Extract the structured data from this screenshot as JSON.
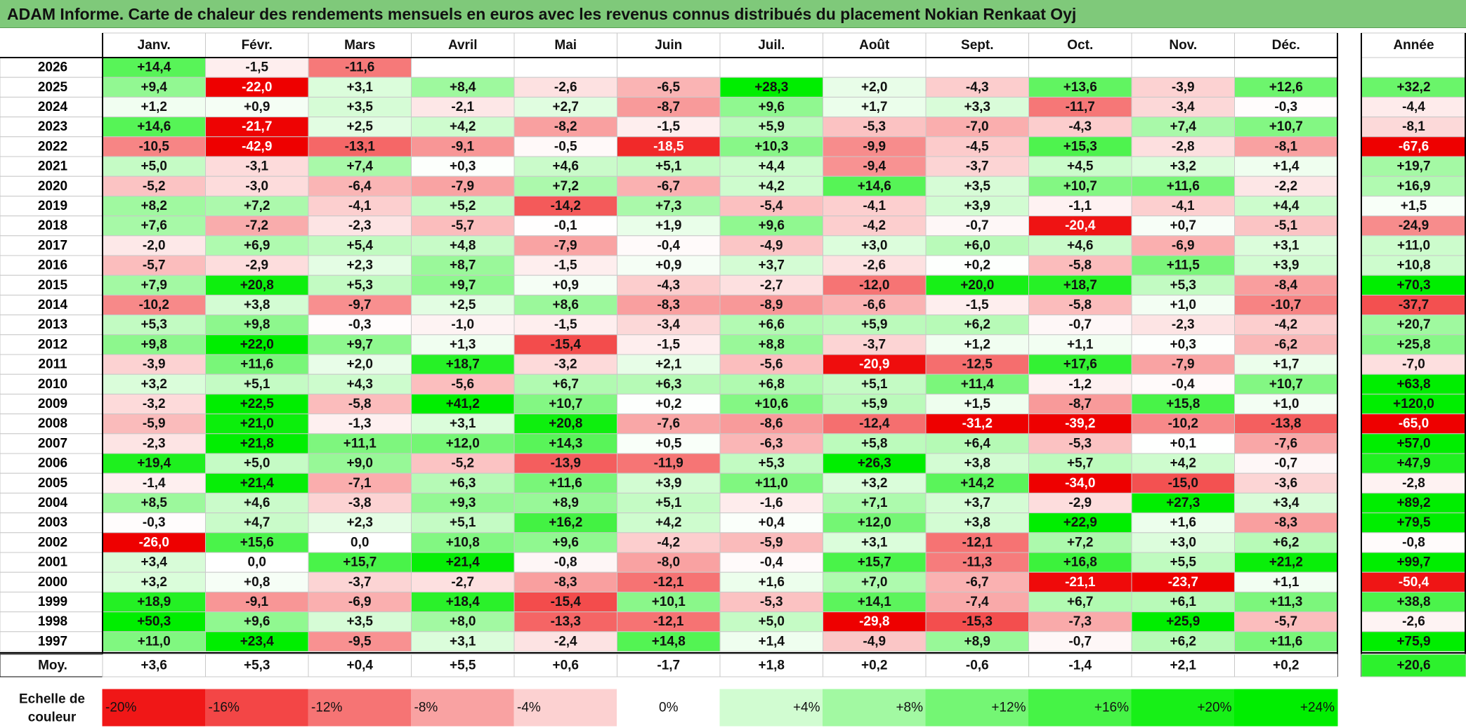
{
  "title": "ADAM Informe. Carte de chaleur des rendements mensuels en euros avec les revenus connus distribués du placement Nokian Renkaat Oyj",
  "colors": {
    "title_bg": "#7fc97a",
    "positive_max": "#00ee00",
    "negative_max": "#ee0000",
    "neutral": "#ffffff"
  },
  "chart_data": {
    "type": "heatmap",
    "title": "ADAM Informe. Carte de chaleur des rendements mensuels en euros avec les revenus connus distribués du placement Nokian Renkaat Oyj",
    "months": [
      "Janv.",
      "Févr.",
      "Mars",
      "Avril",
      "Mai",
      "Juin",
      "Juil.",
      "Août",
      "Sept.",
      "Oct.",
      "Nov.",
      "Déc."
    ],
    "year_label": "Année",
    "average_label": "Moy.",
    "rows": [
      {
        "year": "2026",
        "values": [
          "+14,4",
          "-1,5",
          "-11,6",
          "",
          "",
          "",
          "",
          "",
          "",
          "",
          "",
          ""
        ],
        "annual": ""
      },
      {
        "year": "2025",
        "values": [
          "+9,4",
          "-22,0",
          "+3,1",
          "+8,4",
          "-2,6",
          "-6,5",
          "+28,3",
          "+2,0",
          "-4,3",
          "+13,6",
          "-3,9",
          "+12,6"
        ],
        "annual": "+32,2"
      },
      {
        "year": "2024",
        "values": [
          "+1,2",
          "+0,9",
          "+3,5",
          "-2,1",
          "+2,7",
          "-8,7",
          "+9,6",
          "+1,7",
          "+3,3",
          "-11,7",
          "-3,4",
          "-0,3"
        ],
        "annual": "-4,4"
      },
      {
        "year": "2023",
        "values": [
          "+14,6",
          "-21,7",
          "+2,5",
          "+4,2",
          "-8,2",
          "-1,5",
          "+5,9",
          "-5,3",
          "-7,0",
          "-4,3",
          "+7,4",
          "+10,7"
        ],
        "annual": "-8,1"
      },
      {
        "year": "2022",
        "values": [
          "-10,5",
          "-42,9",
          "-13,1",
          "-9,1",
          "-0,5",
          "-18,5",
          "+10,3",
          "-9,9",
          "-4,5",
          "+15,3",
          "-2,8",
          "-8,1"
        ],
        "annual": "-67,6"
      },
      {
        "year": "2021",
        "values": [
          "+5,0",
          "-3,1",
          "+7,4",
          "+0,3",
          "+4,6",
          "+5,1",
          "+4,4",
          "-9,4",
          "-3,7",
          "+4,5",
          "+3,2",
          "+1,4"
        ],
        "annual": "+19,7"
      },
      {
        "year": "2020",
        "values": [
          "-5,2",
          "-3,0",
          "-6,4",
          "-7,9",
          "+7,2",
          "-6,7",
          "+4,2",
          "+14,6",
          "+3,5",
          "+10,7",
          "+11,6",
          "-2,2"
        ],
        "annual": "+16,9"
      },
      {
        "year": "2019",
        "values": [
          "+8,2",
          "+7,2",
          "-4,1",
          "+5,2",
          "-14,2",
          "+7,3",
          "-5,4",
          "-4,1",
          "+3,9",
          "-1,1",
          "-4,1",
          "+4,4"
        ],
        "annual": "+1,5"
      },
      {
        "year": "2018",
        "values": [
          "+7,6",
          "-7,2",
          "-2,3",
          "-5,7",
          "-0,1",
          "+1,9",
          "+9,6",
          "-4,2",
          "-0,7",
          "-20,4",
          "+0,7",
          "-5,1"
        ],
        "annual": "-24,9"
      },
      {
        "year": "2017",
        "values": [
          "-2,0",
          "+6,9",
          "+5,4",
          "+4,8",
          "-7,9",
          "-0,4",
          "-4,9",
          "+3,0",
          "+6,0",
          "+4,6",
          "-6,9",
          "+3,1"
        ],
        "annual": "+11,0"
      },
      {
        "year": "2016",
        "values": [
          "-5,7",
          "-2,9",
          "+2,3",
          "+8,7",
          "-1,5",
          "+0,9",
          "+3,7",
          "-2,6",
          "+0,2",
          "-5,8",
          "+11,5",
          "+3,9"
        ],
        "annual": "+10,8"
      },
      {
        "year": "2015",
        "values": [
          "+7,9",
          "+20,8",
          "+5,3",
          "+9,7",
          "+0,9",
          "-4,3",
          "-2,7",
          "-12,0",
          "+20,0",
          "+18,7",
          "+5,3",
          "-8,4"
        ],
        "annual": "+70,3"
      },
      {
        "year": "2014",
        "values": [
          "-10,2",
          "+3,8",
          "-9,7",
          "+2,5",
          "+8,6",
          "-8,3",
          "-8,9",
          "-6,6",
          "-1,5",
          "-5,8",
          "+1,0",
          "-10,7"
        ],
        "annual": "-37,7"
      },
      {
        "year": "2013",
        "values": [
          "+5,3",
          "+9,8",
          "-0,3",
          "-1,0",
          "-1,5",
          "-3,4",
          "+6,6",
          "+5,9",
          "+6,2",
          "-0,7",
          "-2,3",
          "-4,2"
        ],
        "annual": "+20,7"
      },
      {
        "year": "2012",
        "values": [
          "+9,8",
          "+22,0",
          "+9,7",
          "+1,3",
          "-15,4",
          "-1,5",
          "+8,8",
          "-3,7",
          "+1,2",
          "+1,1",
          "+0,3",
          "-6,2"
        ],
        "annual": "+25,8"
      },
      {
        "year": "2011",
        "values": [
          "-3,9",
          "+11,6",
          "+2,0",
          "+18,7",
          "-3,2",
          "+2,1",
          "-5,6",
          "-20,9",
          "-12,5",
          "+17,6",
          "-7,9",
          "+1,7"
        ],
        "annual": "-7,0"
      },
      {
        "year": "2010",
        "values": [
          "+3,2",
          "+5,1",
          "+4,3",
          "-5,6",
          "+6,7",
          "+6,3",
          "+6,8",
          "+5,1",
          "+11,4",
          "-1,2",
          "-0,4",
          "+10,7"
        ],
        "annual": "+63,8"
      },
      {
        "year": "2009",
        "values": [
          "-3,2",
          "+22,5",
          "-5,8",
          "+41,2",
          "+10,7",
          "+0,2",
          "+10,6",
          "+5,9",
          "+1,5",
          "-8,7",
          "+15,8",
          "+1,0"
        ],
        "annual": "+120,0"
      },
      {
        "year": "2008",
        "values": [
          "-5,9",
          "+21,0",
          "-1,3",
          "+3,1",
          "+20,8",
          "-7,6",
          "-8,6",
          "-12,4",
          "-31,2",
          "-39,2",
          "-10,2",
          "-13,8"
        ],
        "annual": "-65,0"
      },
      {
        "year": "2007",
        "values": [
          "-2,3",
          "+21,8",
          "+11,1",
          "+12,0",
          "+14,3",
          "+0,5",
          "-6,3",
          "+5,8",
          "+6,4",
          "-5,3",
          "+0,1",
          "-7,6"
        ],
        "annual": "+57,0"
      },
      {
        "year": "2006",
        "values": [
          "+19,4",
          "+5,0",
          "+9,0",
          "-5,2",
          "-13,9",
          "-11,9",
          "+5,3",
          "+26,3",
          "+3,8",
          "+5,7",
          "+4,2",
          "-0,7"
        ],
        "annual": "+47,9"
      },
      {
        "year": "2005",
        "values": [
          "-1,4",
          "+21,4",
          "-7,1",
          "+6,3",
          "+11,6",
          "+3,9",
          "+11,0",
          "+3,2",
          "+14,2",
          "-34,0",
          "-15,0",
          "-3,6"
        ],
        "annual": "-2,8"
      },
      {
        "year": "2004",
        "values": [
          "+8,5",
          "+4,6",
          "-3,8",
          "+9,3",
          "+8,9",
          "+5,1",
          "-1,6",
          "+7,1",
          "+3,7",
          "-2,9",
          "+27,3",
          "+3,4"
        ],
        "annual": "+89,2"
      },
      {
        "year": "2003",
        "values": [
          "-0,3",
          "+4,7",
          "+2,3",
          "+5,1",
          "+16,2",
          "+4,2",
          "+0,4",
          "+12,0",
          "+3,8",
          "+22,9",
          "+1,6",
          "-8,3"
        ],
        "annual": "+79,5"
      },
      {
        "year": "2002",
        "values": [
          "-26,0",
          "+15,6",
          "0,0",
          "+10,8",
          "+9,6",
          "-4,2",
          "-5,9",
          "+3,1",
          "-12,1",
          "+7,2",
          "+3,0",
          "+6,2"
        ],
        "annual": "-0,8"
      },
      {
        "year": "2001",
        "values": [
          "+3,4",
          "0,0",
          "+15,7",
          "+21,4",
          "-0,8",
          "-8,0",
          "-0,4",
          "+15,7",
          "-11,3",
          "+16,8",
          "+5,5",
          "+21,2"
        ],
        "annual": "+99,7"
      },
      {
        "year": "2000",
        "values": [
          "+3,2",
          "+0,8",
          "-3,7",
          "-2,7",
          "-8,3",
          "-12,1",
          "+1,6",
          "+7,0",
          "-6,7",
          "-21,1",
          "-23,7",
          "+1,1"
        ],
        "annual": "-50,4"
      },
      {
        "year": "1999",
        "values": [
          "+18,9",
          "-9,1",
          "-6,9",
          "+18,4",
          "-15,4",
          "+10,1",
          "-5,3",
          "+14,1",
          "-7,4",
          "+6,7",
          "+6,1",
          "+11,3"
        ],
        "annual": "+38,8"
      },
      {
        "year": "1998",
        "values": [
          "+50,3",
          "+9,6",
          "+3,5",
          "+8,0",
          "-13,3",
          "-12,1",
          "+5,0",
          "-29,8",
          "-15,3",
          "-7,3",
          "+25,9",
          "-5,7"
        ],
        "annual": "-2,6"
      },
      {
        "year": "1997",
        "values": [
          "+11,0",
          "+23,4",
          "-9,5",
          "+3,1",
          "-2,4",
          "+14,8",
          "+1,4",
          "-4,9",
          "+8,9",
          "-0,7",
          "+6,2",
          "+11,6"
        ],
        "annual": "+75,9"
      }
    ],
    "averages": [
      "+3,6",
      "+5,3",
      "+0,4",
      "+5,5",
      "+0,6",
      "-1,7",
      "+1,8",
      "+0,2",
      "-0,6",
      "-1,4",
      "+2,1",
      "+0,2"
    ],
    "average_annual": "+20,6",
    "color_scale": {
      "label_line1": "Echelle de",
      "label_line2": "couleur",
      "steps": [
        {
          "label": "-20%",
          "value": -20
        },
        {
          "label": "-16%",
          "value": -16
        },
        {
          "label": "-12%",
          "value": -12
        },
        {
          "label": "-8%",
          "value": -8
        },
        {
          "label": "-4%",
          "value": -4
        },
        {
          "label": "0%",
          "value": 0
        },
        {
          "label": "+4%",
          "value": 4
        },
        {
          "label": "+8%",
          "value": 8
        },
        {
          "label": "+12%",
          "value": 12
        },
        {
          "label": "+16%",
          "value": 16
        },
        {
          "label": "+20%",
          "value": 20
        },
        {
          "label": "+24%",
          "value": 24
        }
      ]
    }
  }
}
